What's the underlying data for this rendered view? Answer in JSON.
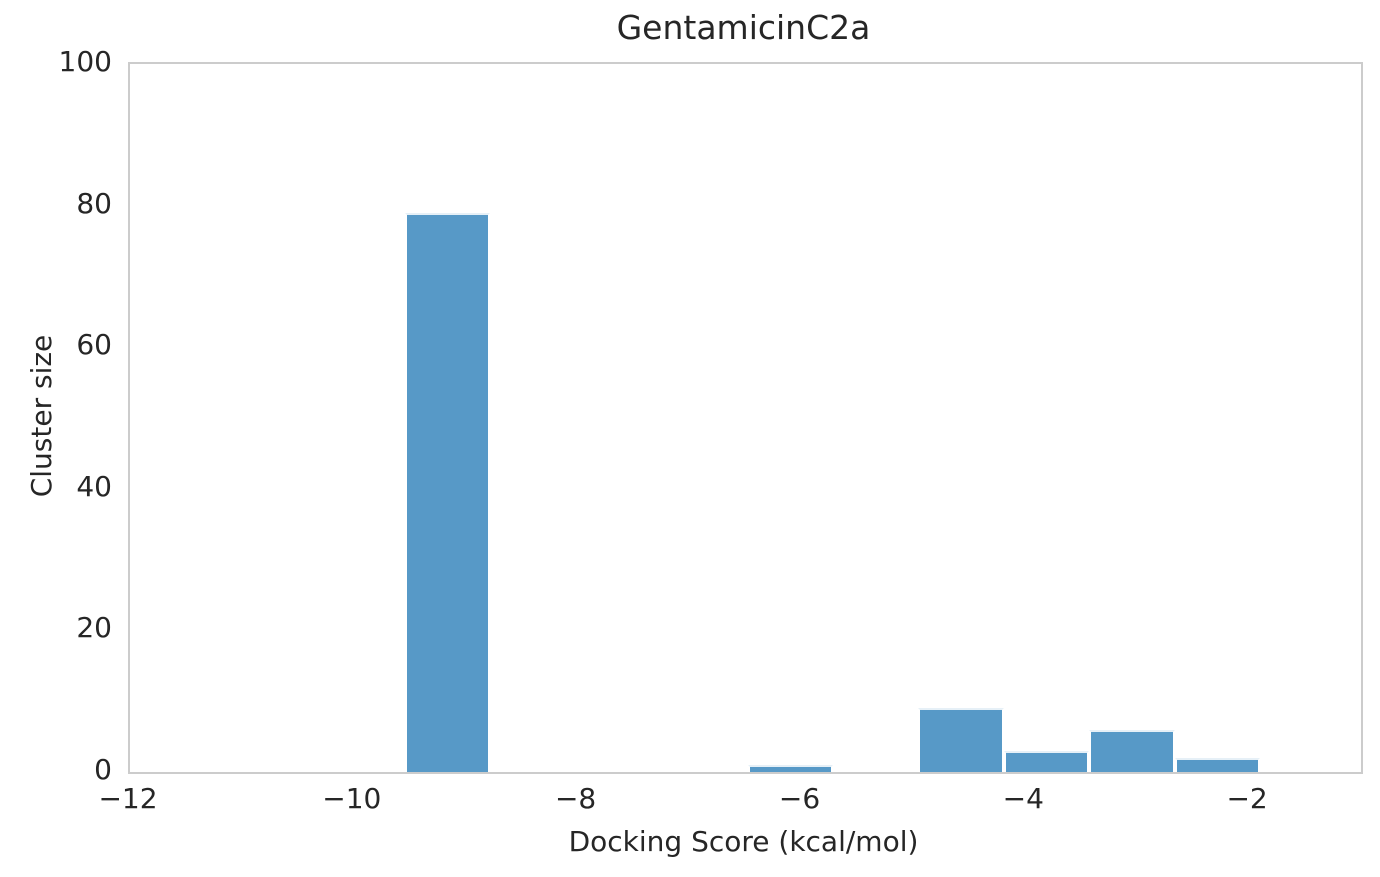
{
  "chart_data": {
    "type": "bar",
    "subtype": "histogram",
    "title": "GentamicinC2a",
    "xlabel": "Docking Score (kcal/mol)",
    "ylabel": "Cluster size",
    "xlim": [
      -12,
      -1
    ],
    "ylim": [
      0,
      100
    ],
    "grid": false,
    "legend": "none",
    "bin_edges": [
      -9.54,
      -8.78,
      -8.01,
      -7.25,
      -6.48,
      -5.72,
      -4.96,
      -4.19,
      -3.43,
      -2.66,
      -1.9
    ],
    "counts": [
      79,
      0,
      0,
      0,
      1,
      0,
      9,
      3,
      6,
      2
    ],
    "x_ticks": [
      {
        "value": -12,
        "label": "−12"
      },
      {
        "value": -10,
        "label": "−10"
      },
      {
        "value": -8,
        "label": "−8"
      },
      {
        "value": -6,
        "label": "−6"
      },
      {
        "value": -4,
        "label": "−4"
      },
      {
        "value": -2,
        "label": "−2"
      }
    ],
    "y_ticks": [
      {
        "value": 0,
        "label": "0"
      },
      {
        "value": 20,
        "label": "20"
      },
      {
        "value": 40,
        "label": "40"
      },
      {
        "value": 60,
        "label": "60"
      },
      {
        "value": 80,
        "label": "80"
      },
      {
        "value": 100,
        "label": "100"
      }
    ],
    "colors": {
      "bar_fill": "#5799c7",
      "bar_edge": "#ffffff",
      "spine": "#cccccc",
      "text": "#262626",
      "background": "#ffffff"
    }
  }
}
